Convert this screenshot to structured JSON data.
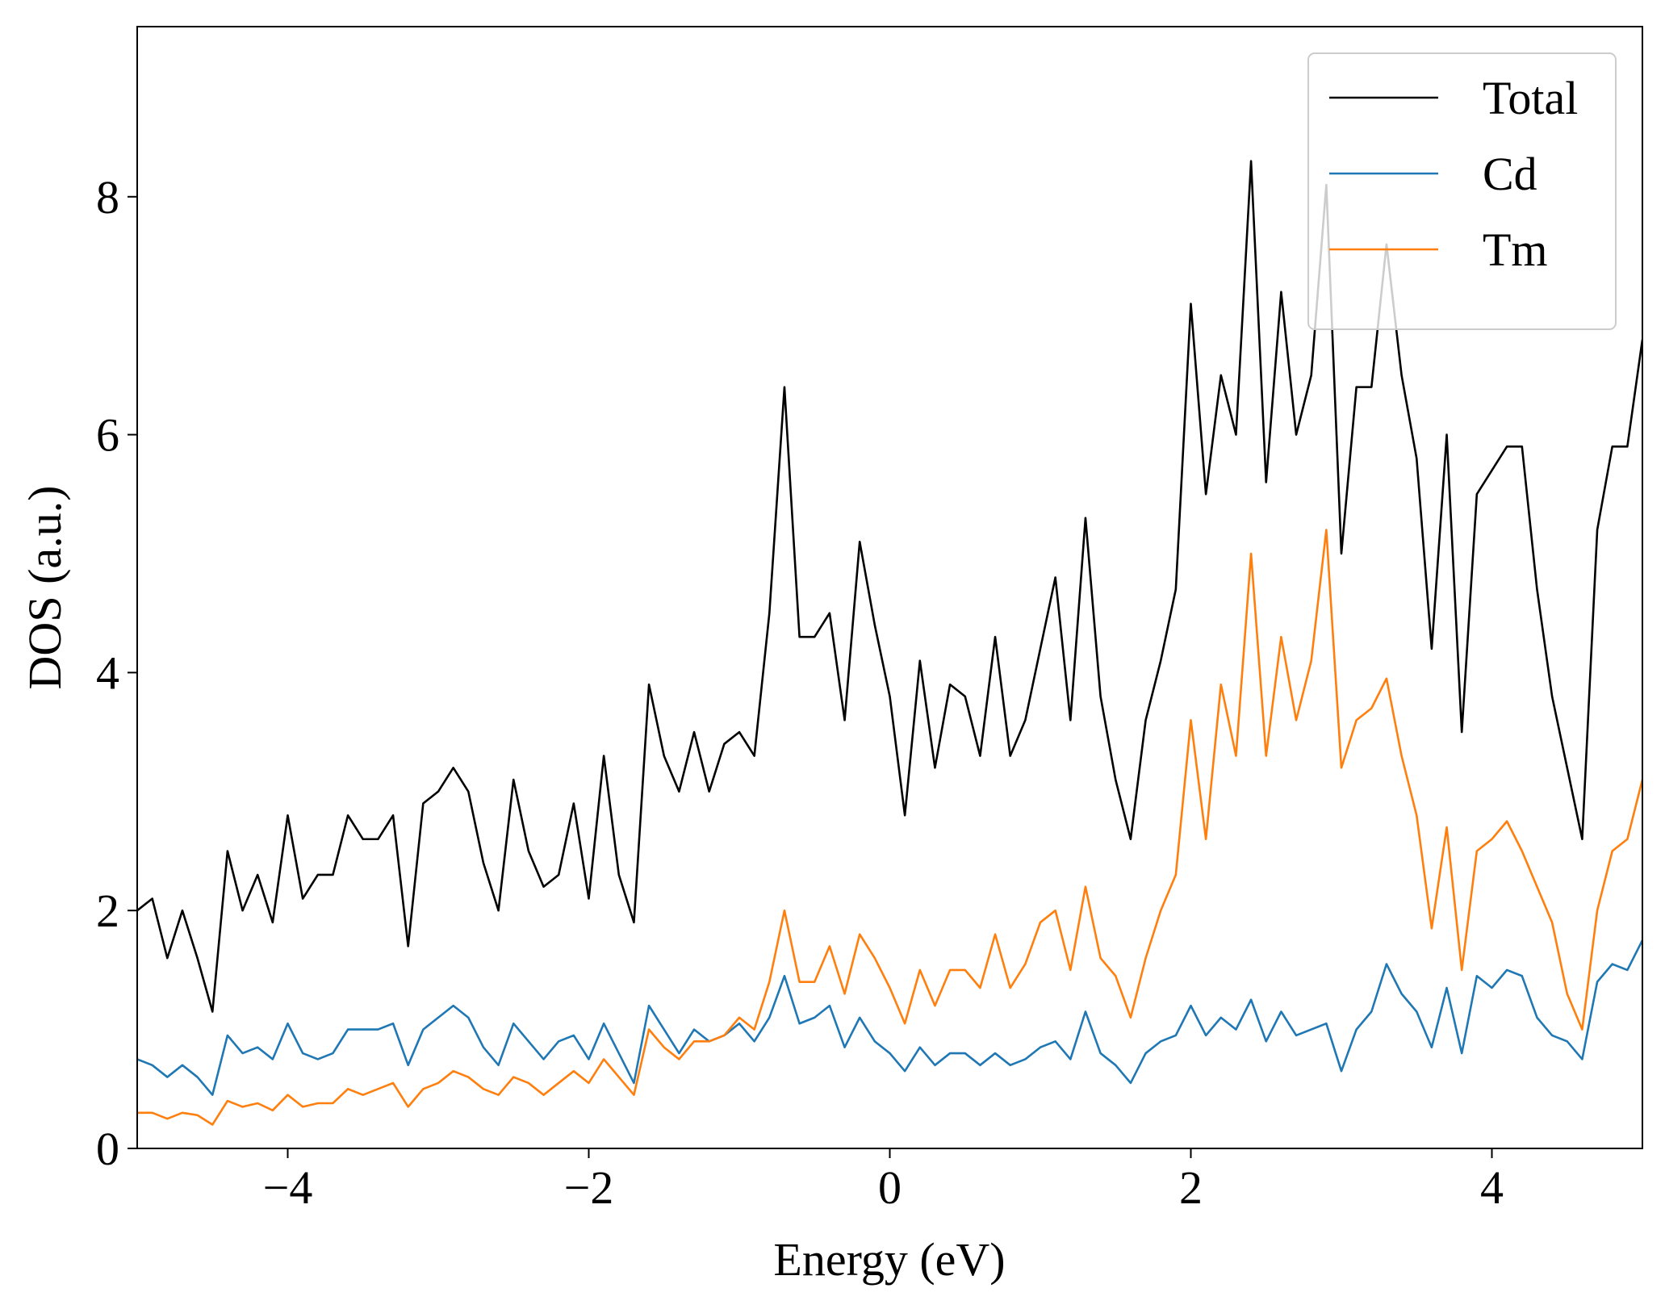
{
  "chart_data": {
    "type": "line",
    "xlabel": "Energy (eV)",
    "ylabel": "DOS (a.u.)",
    "xlim": [
      -5,
      5
    ],
    "ylim": [
      0,
      9.43
    ],
    "xticks": [
      {
        "value": -4,
        "label": "−4"
      },
      {
        "value": -2,
        "label": "−2"
      },
      0,
      2,
      4
    ],
    "yticks": [
      0,
      2,
      4,
      6,
      8
    ],
    "legend": "upper right",
    "grid": false,
    "x": [
      -5.0,
      -4.9,
      -4.8,
      -4.7,
      -4.6,
      -4.5,
      -4.4,
      -4.3,
      -4.2,
      -4.1,
      -4.0,
      -3.9,
      -3.8,
      -3.7,
      -3.6,
      -3.5,
      -3.4,
      -3.3,
      -3.2,
      -3.1,
      -3.0,
      -2.9,
      -2.8,
      -2.7,
      -2.6,
      -2.5,
      -2.4,
      -2.3,
      -2.2,
      -2.1,
      -2.0,
      -1.9,
      -1.8,
      -1.7,
      -1.6,
      -1.5,
      -1.4,
      -1.3,
      -1.2,
      -1.1,
      -1.0,
      -0.9,
      -0.8,
      -0.7,
      -0.6,
      -0.5,
      -0.4,
      -0.3,
      -0.2,
      -0.1,
      0.0,
      0.1,
      0.2,
      0.3,
      0.4,
      0.5,
      0.6,
      0.7,
      0.8,
      0.9,
      1.0,
      1.1,
      1.2,
      1.3,
      1.4,
      1.5,
      1.6,
      1.7,
      1.8,
      1.9,
      2.0,
      2.1,
      2.2,
      2.3,
      2.4,
      2.5,
      2.6,
      2.7,
      2.8,
      2.9,
      3.0,
      3.1,
      3.2,
      3.3,
      3.4,
      3.5,
      3.6,
      3.7,
      3.8,
      3.9,
      4.0,
      4.1,
      4.2,
      4.3,
      4.4,
      4.5,
      4.6,
      4.7,
      4.8,
      4.9,
      5.0
    ],
    "series": [
      {
        "name": "Total",
        "color": "#000000",
        "values": [
          2.0,
          2.1,
          1.6,
          2.0,
          1.6,
          1.15,
          2.5,
          2.0,
          2.3,
          1.9,
          2.8,
          2.1,
          2.3,
          2.3,
          2.8,
          2.6,
          2.6,
          2.8,
          1.7,
          2.9,
          3.0,
          3.2,
          3.0,
          2.4,
          2.0,
          3.1,
          2.5,
          2.2,
          2.3,
          2.9,
          2.1,
          3.3,
          2.3,
          1.9,
          3.9,
          3.3,
          3.0,
          3.5,
          3.0,
          3.4,
          3.5,
          3.3,
          4.5,
          6.4,
          4.3,
          4.3,
          4.5,
          3.6,
          5.1,
          4.4,
          3.8,
          2.8,
          4.1,
          3.2,
          3.9,
          3.8,
          3.3,
          4.3,
          3.3,
          3.6,
          4.2,
          4.8,
          3.6,
          5.3,
          3.8,
          3.1,
          2.6,
          3.6,
          4.1,
          4.7,
          7.1,
          5.5,
          6.5,
          6.0,
          8.3,
          5.6,
          7.2,
          6.0,
          6.5,
          8.1,
          5.0,
          6.4,
          6.4,
          7.6,
          6.5,
          5.8,
          4.2,
          6.0,
          3.5,
          5.5,
          5.7,
          5.9,
          5.9,
          4.7,
          3.8,
          3.2,
          2.6,
          5.2,
          5.9,
          5.9,
          6.8
        ]
      },
      {
        "name": "Cd",
        "color": "#1f77b4",
        "values": [
          0.75,
          0.7,
          0.6,
          0.7,
          0.6,
          0.45,
          0.95,
          0.8,
          0.85,
          0.75,
          1.05,
          0.8,
          0.75,
          0.8,
          1.0,
          1.0,
          1.0,
          1.05,
          0.7,
          1.0,
          1.1,
          1.2,
          1.1,
          0.85,
          0.7,
          1.05,
          0.9,
          0.75,
          0.9,
          0.95,
          0.75,
          1.05,
          0.8,
          0.55,
          1.2,
          1.0,
          0.8,
          1.0,
          0.9,
          0.95,
          1.05,
          0.9,
          1.1,
          1.45,
          1.05,
          1.1,
          1.2,
          0.85,
          1.1,
          0.9,
          0.8,
          0.65,
          0.85,
          0.7,
          0.8,
          0.8,
          0.7,
          0.8,
          0.7,
          0.75,
          0.85,
          0.9,
          0.75,
          1.15,
          0.8,
          0.7,
          0.55,
          0.8,
          0.9,
          0.95,
          1.2,
          0.95,
          1.1,
          1.0,
          1.25,
          0.9,
          1.15,
          0.95,
          1.0,
          1.05,
          0.65,
          1.0,
          1.15,
          1.55,
          1.3,
          1.15,
          0.85,
          1.35,
          0.8,
          1.45,
          1.35,
          1.5,
          1.45,
          1.1,
          0.95,
          0.9,
          0.75,
          1.4,
          1.55,
          1.5,
          1.75
        ]
      },
      {
        "name": "Tm",
        "color": "#ff7f0e",
        "values": [
          0.3,
          0.3,
          0.25,
          0.3,
          0.28,
          0.2,
          0.4,
          0.35,
          0.38,
          0.32,
          0.45,
          0.35,
          0.38,
          0.38,
          0.5,
          0.45,
          0.5,
          0.55,
          0.35,
          0.5,
          0.55,
          0.65,
          0.6,
          0.5,
          0.45,
          0.6,
          0.55,
          0.45,
          0.55,
          0.65,
          0.55,
          0.75,
          0.6,
          0.45,
          1.0,
          0.85,
          0.75,
          0.9,
          0.9,
          0.95,
          1.1,
          1.0,
          1.4,
          2.0,
          1.4,
          1.4,
          1.7,
          1.3,
          1.8,
          1.6,
          1.35,
          1.05,
          1.5,
          1.2,
          1.5,
          1.5,
          1.35,
          1.8,
          1.35,
          1.55,
          1.9,
          2.0,
          1.5,
          2.2,
          1.6,
          1.45,
          1.1,
          1.6,
          2.0,
          2.3,
          3.6,
          2.6,
          3.9,
          3.3,
          5.0,
          3.3,
          4.3,
          3.6,
          4.1,
          5.2,
          3.2,
          3.6,
          3.7,
          3.95,
          3.3,
          2.8,
          1.85,
          2.7,
          1.5,
          2.5,
          2.6,
          2.75,
          2.5,
          2.2,
          1.9,
          1.3,
          1.0,
          2.0,
          2.5,
          2.6,
          3.1
        ]
      }
    ]
  }
}
